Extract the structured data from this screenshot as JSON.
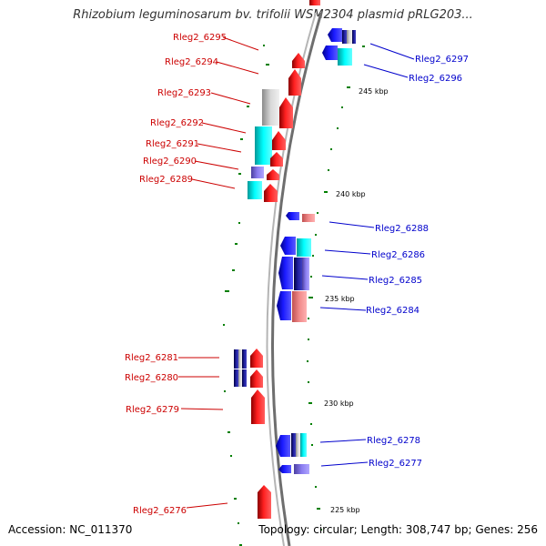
{
  "title": "Rhizobium leguminosarum bv. trifolii WSM2304 plasmid pRLG203...",
  "footer": {
    "accession": "Accession: NC_011370",
    "summary": "Topology: circular; Length: 308,747 bp; Genes: 256"
  },
  "colors": {
    "forward_label": "#cc0000",
    "reverse_label": "#0000cc",
    "forward_gene": "#ff0000",
    "reverse_gene": "#0000ff",
    "cyan": "#00e5e5",
    "grey": "#b8b8b8",
    "purple": "#7b68ee",
    "navy": "#000080",
    "pink": "#f08080",
    "backbone": "#8c8c8c",
    "gc_tick": "#007f00"
  },
  "scale_ticks": [
    "245 kbp",
    "240 kbp",
    "235 kbp",
    "230 kbp",
    "225 kbp"
  ],
  "gene_labels": [
    {
      "name": "Rleg2_6295",
      "strand": "forward"
    },
    {
      "name": "Rleg2_6294",
      "strand": "forward"
    },
    {
      "name": "Rleg2_6293",
      "strand": "forward"
    },
    {
      "name": "Rleg2_6292",
      "strand": "forward"
    },
    {
      "name": "Rleg2_6291",
      "strand": "forward"
    },
    {
      "name": "Rleg2_6290",
      "strand": "forward"
    },
    {
      "name": "Rleg2_6289",
      "strand": "forward"
    },
    {
      "name": "Rleg2_6297",
      "strand": "reverse"
    },
    {
      "name": "Rleg2_6296",
      "strand": "reverse"
    },
    {
      "name": "Rleg2_6288",
      "strand": "reverse"
    },
    {
      "name": "Rleg2_6286",
      "strand": "reverse"
    },
    {
      "name": "Rleg2_6285",
      "strand": "reverse"
    },
    {
      "name": "Rleg2_6284",
      "strand": "reverse"
    },
    {
      "name": "Rleg2_6281",
      "strand": "forward"
    },
    {
      "name": "Rleg2_6280",
      "strand": "forward"
    },
    {
      "name": "Rleg2_6279",
      "strand": "forward"
    },
    {
      "name": "Rleg2_6278",
      "strand": "reverse"
    },
    {
      "name": "Rleg2_6277",
      "strand": "reverse"
    },
    {
      "name": "Rleg2_6276",
      "strand": "forward"
    }
  ]
}
